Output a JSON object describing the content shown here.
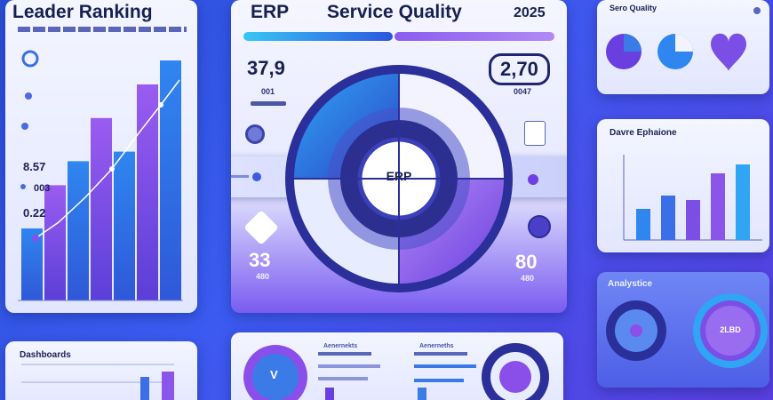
{
  "left_card": {
    "title": "Leader Ranking",
    "subtitle": "",
    "labels": [
      "8.57",
      "003",
      "0.22"
    ]
  },
  "header": {
    "left": "ERP",
    "center": "Service Quality",
    "right": "2025"
  },
  "center_panel": {
    "left_value": "37,9",
    "left_sub": "001",
    "right_value": "2,70",
    "right_sub": "0047",
    "lower_left_value": "33",
    "lower_left_sub": "480",
    "lower_right_value": "80",
    "lower_right_sub": "480",
    "dial_label": "ERP"
  },
  "top_right_card": {
    "title": "Sero Quality"
  },
  "mid_right_card": {
    "title": "Davre Ephaione",
    "values": [
      0.35,
      0.5,
      0.45,
      0.75,
      0.85
    ]
  },
  "lower_right_card": {
    "title": "Analystice",
    "badge": "2LBD"
  },
  "bottom_left_card": {
    "title": "Dashboards"
  },
  "bottom_center": {
    "left_letter": "V",
    "mid_title_1": "Aenernekts",
    "mid_title_2": "Aenerneths"
  },
  "left_chart_data": {
    "type": "bar",
    "values": [
      0.3,
      0.48,
      0.58,
      0.76,
      0.62,
      0.9,
      1.0
    ],
    "ylim": [
      0,
      1
    ]
  },
  "colors": {
    "accent_blue": "#2f7be8",
    "accent_purple": "#7b4fe6",
    "navy": "#2a2f9a"
  }
}
